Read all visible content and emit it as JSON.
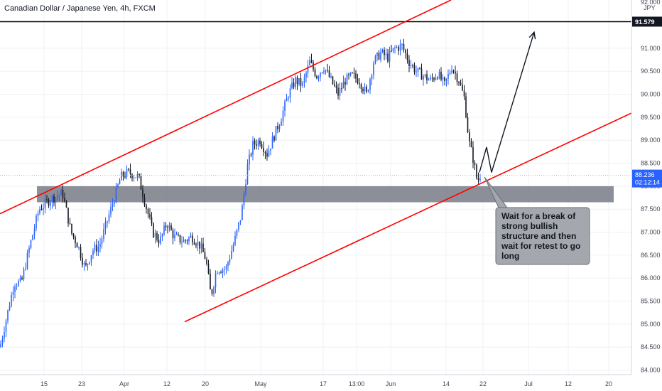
{
  "chart_data": {
    "type": "candlestick",
    "title": "Canadian Dollar / Japanese Yen, 4h, FXCM",
    "currency": "JPY",
    "x_tick_labels": [
      "15",
      "23",
      "Apr",
      "12",
      "20",
      "May",
      "17",
      "13:00",
      "Jun",
      "14",
      "22",
      "Jul",
      "12",
      "20"
    ],
    "y_tick_labels": [
      "84.000",
      "84.500",
      "85.000",
      "85.500",
      "86.000",
      "86.500",
      "87.000",
      "87.500",
      "88.000",
      "88.500",
      "89.000",
      "89.500",
      "90.000",
      "90.500",
      "91.000",
      "92.000"
    ],
    "ylim": [
      83.9,
      92.05
    ],
    "grid": true,
    "colors": {
      "up_candle": "#2962ff",
      "down_candle": "#131722",
      "channel_line": "#ff0000",
      "horizontal_line": "#000000",
      "support_zone": "#787b86",
      "current_price_line": "#9db2e0",
      "price_badge": "#2962ff",
      "level_badge": "#131722",
      "callout_fill": "#a5a7ae",
      "grid": "#eef0f4"
    },
    "horizontal_level": {
      "value": 91.579,
      "label": "91.579"
    },
    "current_price": {
      "value": 88.236,
      "label": "88.236",
      "countdown": "02:12:14"
    },
    "support_zone": {
      "y_top": 88.0,
      "y_bottom": 87.65
    },
    "channel": {
      "upper": {
        "p1": [
          0,
          87.4
        ],
        "p2": [
          635,
          92.05
        ]
      },
      "lower": {
        "p1": [
          260,
          85.05
        ],
        "p2": [
          932,
          89.9
        ]
      }
    },
    "projection_path": [
      [
        675,
        88.3
      ],
      [
        685,
        88.85
      ],
      [
        692,
        88.3
      ],
      [
        752,
        91.35
      ]
    ],
    "path_trend": [
      [
        0,
        84.5
      ],
      [
        10,
        85.2
      ],
      [
        20,
        85.9
      ],
      [
        30,
        85.9
      ],
      [
        42,
        86.7
      ],
      [
        55,
        87.5
      ],
      [
        70,
        87.7
      ],
      [
        88,
        87.85
      ],
      [
        100,
        87.0
      ],
      [
        110,
        86.7
      ],
      [
        120,
        86.2
      ],
      [
        130,
        86.6
      ],
      [
        140,
        86.7
      ],
      [
        150,
        87.2
      ],
      [
        160,
        87.7
      ],
      [
        170,
        88.2
      ],
      [
        180,
        88.3
      ],
      [
        195,
        88.2
      ],
      [
        205,
        87.6
      ],
      [
        215,
        87.0
      ],
      [
        225,
        86.8
      ],
      [
        235,
        87.2
      ],
      [
        245,
        86.9
      ],
      [
        258,
        86.8
      ],
      [
        270,
        86.9
      ],
      [
        282,
        86.7
      ],
      [
        290,
        86.4
      ],
      [
        297,
        85.6
      ],
      [
        305,
        86.2
      ],
      [
        318,
        86.2
      ],
      [
        330,
        86.8
      ],
      [
        340,
        87.4
      ],
      [
        348,
        88.4
      ],
      [
        356,
        88.9
      ],
      [
        366,
        89.0
      ],
      [
        376,
        88.7
      ],
      [
        386,
        89.1
      ],
      [
        396,
        89.5
      ],
      [
        406,
        90.0
      ],
      [
        416,
        90.3
      ],
      [
        426,
        90.2
      ],
      [
        436,
        90.7
      ],
      [
        446,
        90.4
      ],
      [
        456,
        90.6
      ],
      [
        466,
        90.3
      ],
      [
        476,
        90.0
      ],
      [
        486,
        90.3
      ],
      [
        496,
        90.4
      ],
      [
        506,
        90.3
      ],
      [
        516,
        90.0
      ],
      [
        526,
        90.7
      ],
      [
        536,
        90.9
      ],
      [
        546,
        90.8
      ],
      [
        556,
        91.0
      ],
      [
        566,
        91.05
      ],
      [
        576,
        90.7
      ],
      [
        586,
        90.5
      ],
      [
        596,
        90.4
      ],
      [
        606,
        90.3
      ],
      [
        616,
        90.45
      ],
      [
        626,
        90.2
      ],
      [
        636,
        90.6
      ],
      [
        646,
        90.3
      ],
      [
        654,
        89.9
      ],
      [
        660,
        89.0
      ],
      [
        666,
        88.6
      ],
      [
        672,
        88.1
      ],
      [
        676,
        88.24
      ]
    ],
    "annotation": "Wait for a break of strong bullish structure and then wait for retest to go long"
  }
}
